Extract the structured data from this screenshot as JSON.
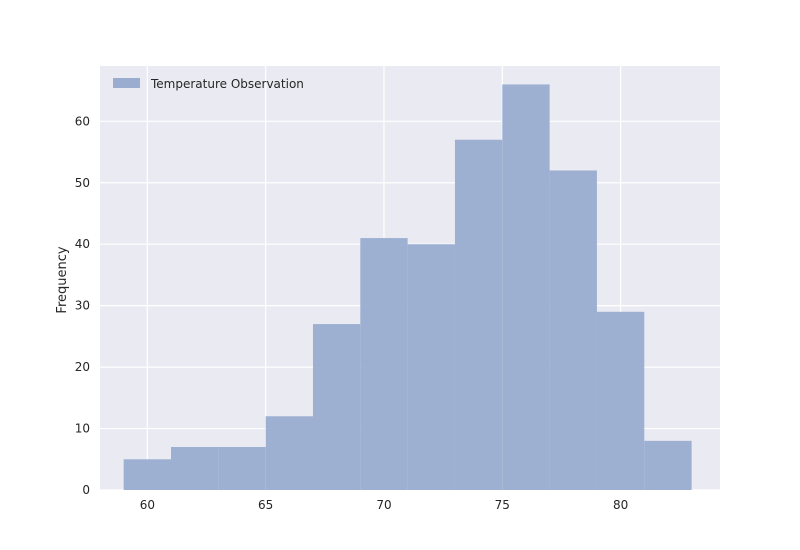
{
  "chart_data": {
    "type": "bar",
    "title": "",
    "xlabel": "",
    "ylabel": "Frequency",
    "xlim": [
      58,
      84.2
    ],
    "ylim": [
      0,
      69
    ],
    "xticks": [
      60,
      65,
      70,
      75,
      80
    ],
    "yticks": [
      0,
      10,
      20,
      30,
      40,
      50,
      60
    ],
    "grid": true,
    "legend_position": "upper-left",
    "series": [
      {
        "name": "Temperature Observation",
        "color": "#9aadd0",
        "bins": [
          {
            "x0": 59,
            "x1": 61,
            "count": 5
          },
          {
            "x0": 61,
            "x1": 63,
            "count": 7
          },
          {
            "x0": 63,
            "x1": 65,
            "count": 7
          },
          {
            "x0": 65,
            "x1": 67,
            "count": 12
          },
          {
            "x0": 67,
            "x1": 69,
            "count": 27
          },
          {
            "x0": 69,
            "x1": 71,
            "count": 41
          },
          {
            "x0": 71,
            "x1": 73,
            "count": 40
          },
          {
            "x0": 73,
            "x1": 75,
            "count": 57
          },
          {
            "x0": 75,
            "x1": 77,
            "count": 66
          },
          {
            "x0": 77,
            "x1": 79,
            "count": 52
          },
          {
            "x0": 79,
            "x1": 81,
            "count": 29
          },
          {
            "x0": 81,
            "x1": 83,
            "count": 8
          }
        ]
      }
    ],
    "colors": {
      "plot_background": "#eaeaf2",
      "grid": "#ffffff",
      "bar": "#9aadd0"
    }
  }
}
